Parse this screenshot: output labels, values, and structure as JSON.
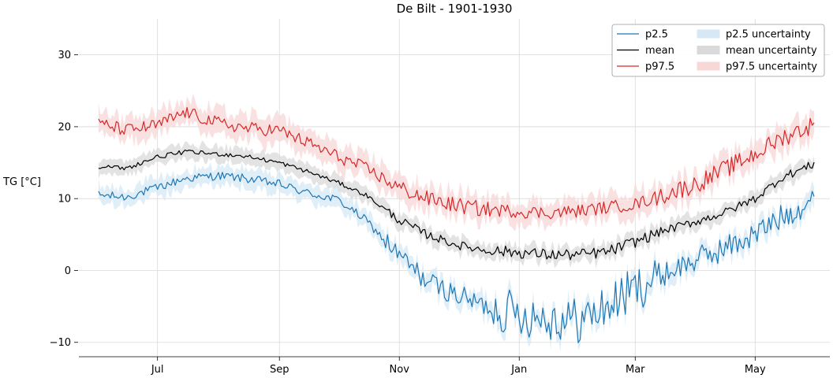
{
  "chart_data": {
    "type": "line",
    "title": "De Bilt - 1901-1930",
    "xlabel": "",
    "ylabel": "TG [°C]",
    "x_start": "06-01",
    "x_end": "05-31",
    "xlim": [
      "05-22",
      "06-08"
    ],
    "ylim": [
      -12,
      35
    ],
    "y_ticks": [
      -10,
      0,
      10,
      20,
      30
    ],
    "y_tick_labels": [
      "−10",
      "0",
      "10",
      "20",
      "30"
    ],
    "x_ticks": [
      {
        "label": "Jul",
        "date": "07-01"
      },
      {
        "label": "Sep",
        "date": "09-01"
      },
      {
        "label": "Nov",
        "date": "11-01"
      },
      {
        "label": "Jan",
        "date": "01-01"
      },
      {
        "label": "Mar",
        "date": "03-01"
      },
      {
        "label": "May",
        "date": "05-01"
      }
    ],
    "grid": true,
    "legend_position": "top-right",
    "series": [
      {
        "name": "p2.5",
        "color": "#1f77b4",
        "band_name": "p2.5 uncertainty",
        "band_color": "#d6e8f5",
        "anchors": [
          [
            "06-01",
            10.5
          ],
          [
            "06-15",
            10.2
          ],
          [
            "07-01",
            11.5
          ],
          [
            "07-15",
            12.8
          ],
          [
            "08-01",
            13.2
          ],
          [
            "08-15",
            12.8
          ],
          [
            "09-01",
            12.0
          ],
          [
            "09-15",
            10.8
          ],
          [
            "10-01",
            9.8
          ],
          [
            "10-15",
            7.0
          ],
          [
            "11-01",
            2.0
          ],
          [
            "11-15",
            -1.5
          ],
          [
            "12-01",
            -3.5
          ],
          [
            "12-15",
            -5.0
          ],
          [
            "01-01",
            -6.0
          ],
          [
            "01-15",
            -6.5
          ],
          [
            "02-01",
            -7.0
          ],
          [
            "02-15",
            -5.0
          ],
          [
            "03-01",
            -2.5
          ],
          [
            "03-15",
            -0.5
          ],
          [
            "04-01",
            1.5
          ],
          [
            "04-15",
            3.0
          ],
          [
            "05-01",
            5.0
          ],
          [
            "05-15",
            7.5
          ],
          [
            "05-31",
            10.0
          ]
        ],
        "noise": [
          0.6,
          1.5,
          3.2,
          1.8
        ],
        "band_width": 1.2
      },
      {
        "name": "mean",
        "color": "#000000",
        "band_name": "mean uncertainty",
        "band_color": "#d9d9d9",
        "anchors": [
          [
            "06-01",
            14.5
          ],
          [
            "06-15",
            14.2
          ],
          [
            "07-01",
            15.8
          ],
          [
            "07-15",
            16.5
          ],
          [
            "08-01",
            16.2
          ],
          [
            "08-15",
            15.9
          ],
          [
            "09-01",
            15.0
          ],
          [
            "09-15",
            13.8
          ],
          [
            "10-01",
            12.2
          ],
          [
            "10-15",
            10.5
          ],
          [
            "11-01",
            7.0
          ],
          [
            "11-15",
            5.0
          ],
          [
            "12-01",
            3.5
          ],
          [
            "12-15",
            2.8
          ],
          [
            "01-01",
            2.5
          ],
          [
            "01-15",
            2.2
          ],
          [
            "02-01",
            2.2
          ],
          [
            "02-15",
            2.6
          ],
          [
            "03-01",
            4.0
          ],
          [
            "03-15",
            5.5
          ],
          [
            "04-01",
            6.8
          ],
          [
            "04-15",
            8.0
          ],
          [
            "05-01",
            10.0
          ],
          [
            "05-15",
            13.0
          ],
          [
            "05-31",
            14.8
          ]
        ],
        "noise": [
          0.3,
          0.6,
          0.8,
          0.6
        ],
        "band_width": 1.0
      },
      {
        "name": "p97.5",
        "color": "#d62728",
        "band_name": "p97.5 uncertainty",
        "band_color": "#f8d7d7",
        "anchors": [
          [
            "06-01",
            20.5
          ],
          [
            "06-15",
            19.5
          ],
          [
            "07-01",
            20.2
          ],
          [
            "07-15",
            22.0
          ],
          [
            "08-01",
            20.5
          ],
          [
            "08-15",
            19.8
          ],
          [
            "09-01",
            19.5
          ],
          [
            "09-15",
            17.8
          ],
          [
            "10-01",
            15.8
          ],
          [
            "10-15",
            14.2
          ],
          [
            "11-01",
            11.5
          ],
          [
            "11-15",
            10.0
          ],
          [
            "12-01",
            9.0
          ],
          [
            "12-15",
            8.5
          ],
          [
            "01-01",
            8.2
          ],
          [
            "01-15",
            8.0
          ],
          [
            "02-01",
            8.3
          ],
          [
            "02-15",
            8.8
          ],
          [
            "03-01",
            9.2
          ],
          [
            "03-15",
            10.5
          ],
          [
            "04-01",
            12.0
          ],
          [
            "04-15",
            14.0
          ],
          [
            "05-01",
            16.2
          ],
          [
            "05-15",
            18.5
          ],
          [
            "05-31",
            20.3
          ]
        ],
        "noise": [
          0.9,
          1.1,
          0.9,
          1.3
        ],
        "band_width": 1.6
      }
    ]
  }
}
